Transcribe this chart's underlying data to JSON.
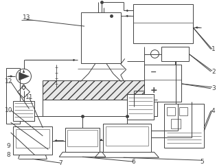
{
  "bg": "#ffffff",
  "lc": "#404040",
  "figsize": [
    3.16,
    2.43
  ],
  "dpi": 100
}
